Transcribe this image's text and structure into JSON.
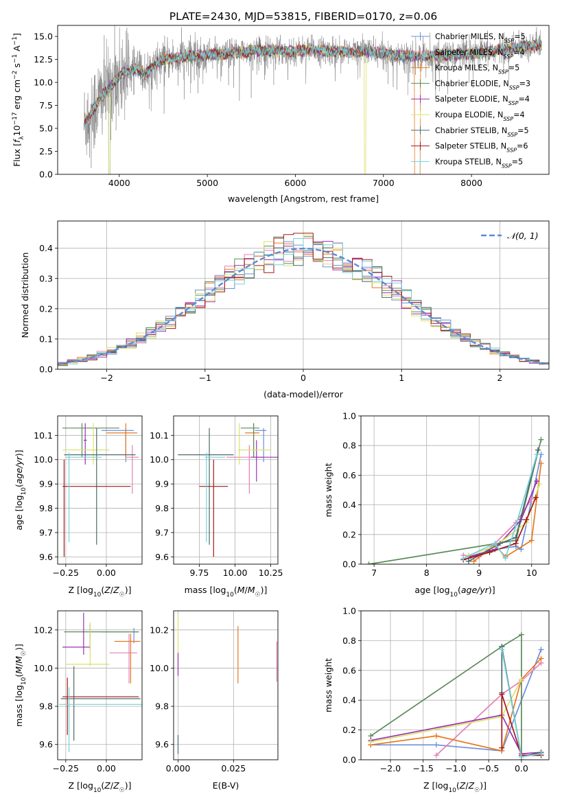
{
  "figure_title": "PLATE=2430, MJD=53815, FIBERID=0170, z=0.06",
  "series_styles": [
    {
      "name": "Chabrier MILES",
      "color": "#6b8fd8"
    },
    {
      "name": "Salpeter MILES",
      "color": "#e67fb4"
    },
    {
      "name": "Kroupa MILES",
      "color": "#e6781e"
    },
    {
      "name": "Chabrier ELODIE",
      "color": "#5a8a5a"
    },
    {
      "name": "Salpeter ELODIE",
      "color": "#9a2fb0"
    },
    {
      "name": "Kroupa ELODIE",
      "color": "#d9e06a"
    },
    {
      "name": "Chabrier STELIB",
      "color": "#4a6a6a"
    },
    {
      "name": "Salpeter STELIB",
      "color": "#a01818"
    },
    {
      "name": "Kroupa STELIB",
      "color": "#76d0d8"
    }
  ],
  "chart_data": [
    {
      "type": "line",
      "id": "spectrum",
      "xlabel": "wavelength [Angstrom, rest frame]",
      "ylabel": "Flux [f_λ 10^-17 erg cm^-2 s^-1 A^-1]",
      "xlim": [
        3300,
        8880
      ],
      "ylim": [
        0,
        16.2
      ],
      "xticks": [
        4000,
        5000,
        6000,
        7000,
        8000
      ],
      "yticks": [
        0.0,
        2.5,
        5.0,
        7.5,
        10.0,
        12.5,
        15.0
      ],
      "data_color": "#808080",
      "legend_loc": "upper right",
      "legend": [
        {
          "label": "Chabrier MILES, N",
          "sub": "SSP",
          "suffix": "=5"
        },
        {
          "label": "Salpeter MILES, N",
          "sub": "SSP",
          "suffix": "=4"
        },
        {
          "label": "Kroupa MILES, N",
          "sub": "SSP",
          "suffix": "=5"
        },
        {
          "label": "Chabrier ELODIE, N",
          "sub": "SSP",
          "suffix": "=3"
        },
        {
          "label": "Salpeter ELODIE, N",
          "sub": "SSP",
          "suffix": "=4"
        },
        {
          "label": "Kroupa ELODIE, N",
          "sub": "SSP",
          "suffix": "=4"
        },
        {
          "label": "Chabrier STELIB, N",
          "sub": "SSP",
          "suffix": "=5"
        },
        {
          "label": "Salpeter STELIB, N",
          "sub": "SSP",
          "suffix": "=6"
        },
        {
          "label": "Kroupa STELIB, N",
          "sub": "SSP",
          "suffix": "=5"
        }
      ],
      "continuum": {
        "x": [
          3600,
          3700,
          3800,
          3900,
          4000,
          4100,
          4200,
          4300,
          4400,
          4500,
          4600,
          4800,
          5000,
          5200,
          5400,
          5600,
          5800,
          6000,
          6200,
          6400,
          6600,
          6800,
          7000,
          7200,
          7400,
          7600,
          7800,
          8000,
          8200,
          8400,
          8600,
          8800
        ],
        "y": [
          5.5,
          7.0,
          8.5,
          9.5,
          10.8,
          11.3,
          11.5,
          10.8,
          12.0,
          12.4,
          12.6,
          12.8,
          13.0,
          13.1,
          13.3,
          13.5,
          13.4,
          13.4,
          13.5,
          13.4,
          13.3,
          13.4,
          13.1,
          12.9,
          12.8,
          12.9,
          13.0,
          13.1,
          13.3,
          13.6,
          13.9,
          14.1
        ]
      }
    },
    {
      "type": "bar",
      "id": "residual-histogram",
      "xlabel": "(data-model)/error",
      "ylabel": "Normed distribution",
      "xlim": [
        -2.5,
        2.5
      ],
      "ylim": [
        0,
        0.49
      ],
      "xticks": [
        -2,
        -1,
        0,
        1,
        2
      ],
      "yticks": [
        0.0,
        0.1,
        0.2,
        0.3,
        0.4
      ],
      "bin_width": 0.1,
      "legend_loc": "upper right",
      "reference_label": "𝒩(0, 1)",
      "reference_color": "#5b8ad6"
    },
    {
      "type": "scatter",
      "id": "age-vs-z",
      "xlabel": "Z [log10(Z/Z☉)]",
      "ylabel": "age [log10(age/yr)]",
      "xlim": [
        -0.3,
        0.22
      ],
      "ylim": [
        9.57,
        10.18
      ],
      "xticks": [
        -0.25,
        0.0
      ],
      "yticks": [
        9.6,
        9.7,
        9.8,
        9.9,
        10.0,
        10.1
      ],
      "points": [
        {
          "x": 0.12,
          "y": 10.12,
          "xerr": [
            0.15,
            0.05
          ],
          "yerr": [
            0.13,
            0.01
          ]
        },
        {
          "x": 0.16,
          "y": 10.01,
          "xerr": [
            0.04,
            0.04
          ],
          "yerr": [
            0.15,
            0.05
          ]
        },
        {
          "x": 0.12,
          "y": 10.11,
          "xerr": [
            0.12,
            0.07
          ],
          "yerr": [
            0.1,
            0.04
          ]
        },
        {
          "x": -0.15,
          "y": 10.13,
          "xerr": [
            0.12,
            0.23
          ],
          "yerr": [
            0.12,
            0.02
          ]
        },
        {
          "x": -0.13,
          "y": 10.08,
          "xerr": [
            0.01,
            0.01
          ],
          "yerr": [
            0.1,
            0.07
          ]
        },
        {
          "x": -0.08,
          "y": 10.04,
          "xerr": [
            0.19,
            0.1
          ],
          "yerr": [
            0.06,
            0.11
          ]
        },
        {
          "x": -0.06,
          "y": 10.02,
          "xerr": [
            0.2,
            0.24
          ],
          "yerr": [
            0.37,
            0.11
          ]
        },
        {
          "x": -0.26,
          "y": 9.89,
          "xerr": [
            0.01,
            0.41
          ],
          "yerr": [
            0.29,
            0.11
          ]
        },
        {
          "x": -0.23,
          "y": 10.01,
          "xerr": [
            0.02,
            0.2
          ],
          "yerr": [
            0.35,
            0.02
          ]
        }
      ]
    },
    {
      "type": "scatter",
      "id": "age-vs-mass",
      "xlabel": "mass [log10(M/M☉)]",
      "ylabel": "",
      "xlim": [
        9.57,
        10.3
      ],
      "ylim": [
        9.57,
        10.18
      ],
      "xticks": [
        9.75,
        10.0,
        10.25
      ],
      "yticks": [
        9.6,
        9.7,
        9.8,
        9.9,
        10.0,
        10.1
      ],
      "points": [
        {
          "x": 10.2,
          "y": 10.12,
          "xerr": [
            0.06,
            0.02
          ],
          "yerr": [
            0.13,
            0.01
          ]
        },
        {
          "x": 10.1,
          "y": 10.01,
          "xerr": [
            0.16,
            0.1
          ],
          "yerr": [
            0.15,
            0.05
          ]
        },
        {
          "x": 10.13,
          "y": 10.11,
          "xerr": [
            0.06,
            0.04
          ],
          "yerr": [
            0.1,
            0.04
          ]
        },
        {
          "x": 10.13,
          "y": 10.13,
          "xerr": [
            0.09,
            0.04
          ],
          "yerr": [
            0.12,
            0.02
          ]
        },
        {
          "x": 10.15,
          "y": 10.01,
          "xerr": [
            0.04,
            0.18
          ],
          "yerr": [
            0.1,
            0.07
          ]
        },
        {
          "x": 10.03,
          "y": 10.04,
          "xerr": [
            0.01,
            0.22
          ],
          "yerr": [
            0.06,
            0.11
          ]
        },
        {
          "x": 9.82,
          "y": 10.02,
          "xerr": [
            0.22,
            0.17
          ],
          "yerr": [
            0.37,
            0.11
          ]
        },
        {
          "x": 9.85,
          "y": 9.89,
          "xerr": [
            0.1,
            0.1
          ],
          "yerr": [
            0.29,
            0.11
          ]
        },
        {
          "x": 9.8,
          "y": 10.01,
          "xerr": [
            0.01,
            0.13
          ],
          "yerr": [
            0.35,
            0.02
          ]
        }
      ]
    },
    {
      "type": "line",
      "id": "weight-vs-age",
      "xlabel": "age [log10(age/yr)]",
      "ylabel": "mass weight",
      "xlim": [
        6.75,
        10.33
      ],
      "ylim": [
        0,
        1
      ],
      "xticks": [
        7,
        8,
        9,
        10
      ],
      "yticks": [
        0.0,
        0.2,
        0.4,
        0.6,
        0.8,
        1.0
      ],
      "series": [
        {
          "x": [
            8.8,
            9.3,
            9.7,
            9.8,
            10.18
          ],
          "y": [
            0.04,
            0.1,
            0.12,
            0.1,
            0.74
          ]
        },
        {
          "x": [
            8.7,
            9.0,
            9.3,
            9.7,
            10.0
          ],
          "y": [
            0.06,
            0.05,
            0.14,
            0.28,
            0.44
          ]
        },
        {
          "x": [
            8.9,
            9.3,
            9.5,
            10.0,
            10.18
          ],
          "y": [
            0.02,
            0.13,
            0.05,
            0.16,
            0.68
          ]
        },
        {
          "x": [
            6.9,
            9.7,
            10.18
          ],
          "y": [
            0.0,
            0.16,
            0.84
          ]
        },
        {
          "x": [
            8.8,
            9.3,
            9.8,
            10.1
          ],
          "y": [
            0.05,
            0.1,
            0.3,
            0.56
          ]
        },
        {
          "x": [
            8.8,
            9.3,
            9.9,
            10.15
          ],
          "y": [
            0.06,
            0.12,
            0.28,
            0.54
          ]
        },
        {
          "x": [
            8.8,
            9.4,
            9.7,
            10.12
          ],
          "y": [
            0.02,
            0.14,
            0.18,
            0.77
          ]
        },
        {
          "x": [
            8.7,
            9.2,
            9.7,
            9.9,
            10.08
          ],
          "y": [
            0.03,
            0.08,
            0.14,
            0.3,
            0.45
          ]
        },
        {
          "x": [
            8.7,
            9.3,
            9.5,
            9.7,
            10.1
          ],
          "y": [
            0.04,
            0.14,
            0.04,
            0.26,
            0.74
          ]
        }
      ]
    },
    {
      "type": "scatter",
      "id": "mass-vs-z",
      "xlabel": "Z [log10(Z/Z☉)]",
      "ylabel": "mass [log10(M/M☉)]",
      "xlim": [
        -0.3,
        0.22
      ],
      "ylim": [
        9.52,
        10.3
      ],
      "xticks": [
        -0.25,
        0.0
      ],
      "yticks": [
        9.6,
        9.8,
        10.0,
        10.2
      ],
      "points": [
        {
          "x": 0.17,
          "y": 10.19,
          "xerr": [
            0.2,
            0.03
          ],
          "yerr": [
            0.06,
            0.02
          ]
        },
        {
          "x": 0.14,
          "y": 10.08,
          "xerr": [
            0.12,
            0.05
          ],
          "yerr": [
            0.16,
            0.1
          ]
        },
        {
          "x": 0.15,
          "y": 10.14,
          "xerr": [
            0.1,
            0.06
          ],
          "yerr": [
            0.22,
            0.04
          ]
        },
        {
          "x": -0.1,
          "y": 10.19,
          "xerr": [
            0.16,
            0.3
          ],
          "yerr": [
            0.09,
            0.04
          ]
        },
        {
          "x": -0.14,
          "y": 10.11,
          "xerr": [
            0.13,
            0.04
          ],
          "yerr": [
            0.04,
            0.18
          ]
        },
        {
          "x": -0.1,
          "y": 10.02,
          "xerr": [
            0.15,
            0.12
          ],
          "yerr": [
            0.01,
            0.22
          ]
        },
        {
          "x": -0.2,
          "y": 9.84,
          "xerr": [
            0.08,
            0.41
          ],
          "yerr": [
            0.22,
            0.17
          ]
        },
        {
          "x": -0.24,
          "y": 9.85,
          "xerr": [
            0.03,
            0.44
          ],
          "yerr": [
            0.2,
            0.1
          ]
        },
        {
          "x": -0.23,
          "y": 9.81,
          "xerr": [
            0.06,
            0.45
          ],
          "yerr": [
            0.25,
            0.09
          ]
        }
      ]
    },
    {
      "type": "scatter",
      "id": "mass-vs-ebv",
      "xlabel": "E(B-V)",
      "ylabel": "",
      "xlim": [
        -0.002,
        0.045
      ],
      "ylim": [
        9.52,
        10.3
      ],
      "xticks": [
        0.0,
        0.025
      ],
      "yticks": [
        9.6,
        9.8,
        10.0,
        10.2
      ],
      "points": [
        {
          "x": 0.0,
          "y": 9.6,
          "yerr": [
            0.05,
            0.05
          ]
        },
        {
          "x": 0.0,
          "y": 10.1,
          "yerr": [
            0.14,
            0.18
          ]
        },
        {
          "x": 0.0,
          "y": 10.02,
          "yerr": [
            0.06,
            0.06
          ]
        },
        {
          "x": 0.027,
          "y": 10.07,
          "yerr": [
            0.15,
            0.15
          ]
        },
        {
          "x": 0.0445,
          "y": 10.04,
          "yerr": [
            0.11,
            0.1
          ]
        }
      ]
    },
    {
      "type": "line",
      "id": "weight-vs-z",
      "xlabel": "Z [log10(Z/Z☉)]",
      "ylabel": "mass weight",
      "xlim": [
        -2.45,
        0.42
      ],
      "ylim": [
        0,
        1
      ],
      "xticks": [
        -2.0,
        -1.5,
        -1.0,
        -0.5,
        0.0
      ],
      "yticks": [
        0.0,
        0.2,
        0.4,
        0.6,
        0.8,
        1.0
      ],
      "series": [
        {
          "x": [
            -2.3,
            -1.3,
            -0.3,
            0.3
          ],
          "y": [
            0.1,
            0.1,
            0.06,
            0.74
          ]
        },
        {
          "x": [
            -1.3,
            -0.3,
            0.0,
            0.3
          ],
          "y": [
            0.03,
            0.44,
            0.53,
            0.65
          ]
        },
        {
          "x": [
            -2.3,
            -1.3,
            -0.3,
            0.0,
            0.3
          ],
          "y": [
            0.1,
            0.16,
            0.06,
            0.54,
            0.68
          ]
        },
        {
          "x": [
            -2.3,
            -0.3,
            0.0,
            0.0
          ],
          "y": [
            0.16,
            0.76,
            0.84,
            0.0
          ]
        },
        {
          "x": [
            -2.3,
            -0.3,
            0.0,
            0.3
          ],
          "y": [
            0.13,
            0.3,
            0.04,
            0.05
          ]
        },
        {
          "x": [
            -2.3,
            -0.3,
            0.0
          ],
          "y": [
            0.12,
            0.29,
            0.54
          ]
        },
        {
          "x": [
            -0.3,
            -0.3,
            0.0,
            0.3
          ],
          "y": [
            0.45,
            0.76,
            0.02,
            0.05
          ]
        },
        {
          "x": [
            -0.3,
            -0.3,
            0.0,
            0.3
          ],
          "y": [
            0.08,
            0.44,
            0.03,
            0.03
          ]
        },
        {
          "x": [
            -0.3,
            0.0,
            0.3
          ],
          "y": [
            0.74,
            0.02,
            0.04
          ]
        }
      ]
    }
  ]
}
